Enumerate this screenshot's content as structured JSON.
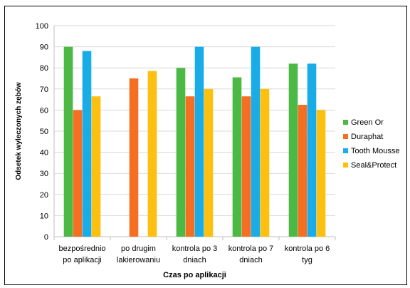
{
  "chart_data": {
    "type": "bar",
    "title": "",
    "xlabel": "Czas po aplikacji",
    "ylabel": "Odsetek wyleczonych zębów",
    "ylim": [
      0,
      100
    ],
    "ytick_step": 10,
    "grid": true,
    "legend_position": "right",
    "categories": [
      [
        "bezpośrednio",
        "po aplikacji"
      ],
      [
        "po drugim",
        "lakierowaniu"
      ],
      [
        "kontrola po 3",
        "dniach"
      ],
      [
        "kontrola po 7",
        "dniach"
      ],
      [
        "kontrola po 6",
        "tyg"
      ]
    ],
    "series": [
      {
        "name": "Green Or",
        "color": "#4CB944",
        "values": [
          90,
          null,
          80,
          75.5,
          82
        ]
      },
      {
        "name": "Duraphat",
        "color": "#F46F22",
        "values": [
          60,
          75,
          66.5,
          66.5,
          62.5
        ]
      },
      {
        "name": "Tooth Mousse",
        "color": "#1AACE6",
        "values": [
          88,
          null,
          90,
          90,
          82
        ]
      },
      {
        "name": "Seal&Protect",
        "color": "#FDC010",
        "values": [
          66.5,
          78.5,
          70,
          70,
          60
        ]
      }
    ]
  }
}
